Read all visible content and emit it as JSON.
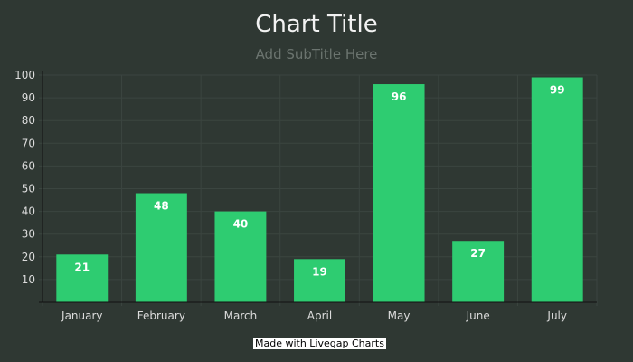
{
  "chart_data": {
    "type": "bar",
    "title": "Chart Title",
    "subtitle": "Add SubTitle Here",
    "categories": [
      "January",
      "February",
      "March",
      "April",
      "May",
      "June",
      "July"
    ],
    "values": [
      21,
      48,
      40,
      19,
      96,
      27,
      99
    ],
    "ylim": [
      0,
      100
    ],
    "yticks": [
      10,
      20,
      30,
      40,
      50,
      60,
      70,
      80,
      90,
      100
    ],
    "grid": true,
    "legend": "none",
    "colors": {
      "background": "#2f3833",
      "bar": "#2ecc71",
      "grid": "#3b4540",
      "axis": "#111111"
    }
  },
  "footer": {
    "credit": "Made with Livegap Charts"
  }
}
